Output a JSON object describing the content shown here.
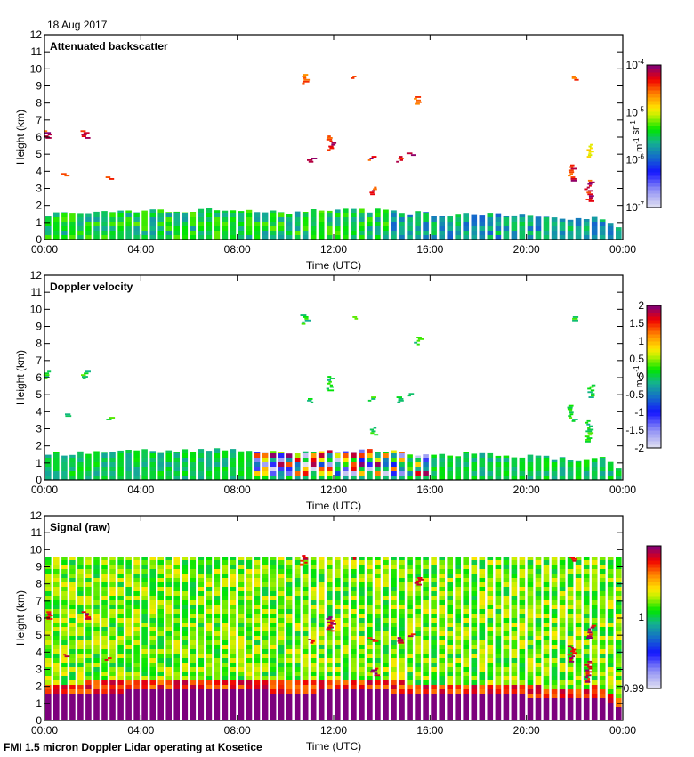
{
  "page": {
    "date_label": "18 Aug 2017",
    "footer": "FMI 1.5 micron Doppler Lidar operating at Kosetice"
  },
  "chart_data": [
    {
      "type": "heatmap",
      "title": "Attenuated backscatter",
      "xlabel": "Time (UTC)",
      "ylabel": "Height (km)",
      "xticks": [
        "00:00",
        "04:00",
        "08:00",
        "12:00",
        "16:00",
        "20:00",
        "00:00"
      ],
      "xlim_hours": [
        0,
        24
      ],
      "yticks": [
        0,
        1,
        2,
        3,
        4,
        5,
        6,
        7,
        8,
        9,
        10,
        11,
        12
      ],
      "ylim": [
        0,
        12
      ],
      "colorbar": {
        "scale": "log",
        "range": [
          1e-07,
          0.0001
        ],
        "tick_labels": [
          {
            "base": "10",
            "exp": "-4",
            "value": -4
          },
          {
            "base": "10",
            "exp": "-5",
            "value": -5
          },
          {
            "base": "10",
            "exp": "-6",
            "value": -6
          },
          {
            "base": "10",
            "exp": "-7",
            "value": -7
          }
        ],
        "label_parts": [
          {
            "text": "m",
            "sup": "-1"
          },
          {
            "text": " sr",
            "sup": "-1"
          }
        ]
      },
      "boundary_layer_km": {
        "hours": [
          0,
          2,
          4,
          6,
          8,
          10,
          12,
          14,
          16,
          18,
          20,
          22,
          23,
          23.8
        ],
        "top": [
          1.5,
          1.6,
          1.7,
          1.7,
          1.8,
          1.6,
          1.7,
          1.7,
          1.5,
          1.5,
          1.4,
          1.2,
          1.4,
          0.8
        ]
      },
      "cloud_features": [
        {
          "hour": 0.05,
          "base_km": 5.9,
          "top_km": 6.3,
          "intensity": "high"
        },
        {
          "hour": 1.6,
          "base_km": 5.9,
          "top_km": 6.3,
          "intensity": "high"
        },
        {
          "hour": 0.8,
          "base_km": 3.7,
          "top_km": 3.9,
          "intensity": "medium"
        },
        {
          "hour": 2.6,
          "base_km": 3.5,
          "top_km": 3.7,
          "intensity": "medium"
        },
        {
          "hour": 10.7,
          "base_km": 9.1,
          "top_km": 9.6,
          "intensity": "medium"
        },
        {
          "hour": 12.8,
          "base_km": 9.4,
          "top_km": 9.6,
          "intensity": "medium"
        },
        {
          "hour": 11.8,
          "base_km": 5.2,
          "top_km": 6.0,
          "intensity": "high"
        },
        {
          "hour": 11.0,
          "base_km": 4.5,
          "top_km": 4.7,
          "intensity": "high"
        },
        {
          "hour": 13.5,
          "base_km": 4.6,
          "top_km": 4.8,
          "intensity": "high"
        },
        {
          "hour": 14.7,
          "base_km": 4.5,
          "top_km": 4.8,
          "intensity": "high"
        },
        {
          "hour": 15.1,
          "base_km": 4.9,
          "top_km": 5.1,
          "intensity": "high"
        },
        {
          "hour": 15.4,
          "base_km": 7.9,
          "top_km": 8.3,
          "intensity": "medium"
        },
        {
          "hour": 13.6,
          "base_km": 2.6,
          "top_km": 3.1,
          "intensity": "high"
        },
        {
          "hour": 21.8,
          "base_km": 3.4,
          "top_km": 4.3,
          "intensity": "high"
        },
        {
          "hour": 22.5,
          "base_km": 2.2,
          "top_km": 3.5,
          "intensity": "high"
        },
        {
          "hour": 22.6,
          "base_km": 4.8,
          "top_km": 5.5,
          "intensity": "low"
        },
        {
          "hour": 21.9,
          "base_km": 9.3,
          "top_km": 9.6,
          "intensity": "medium"
        }
      ]
    },
    {
      "type": "heatmap",
      "title": "Doppler velocity",
      "xlabel": "Time (UTC)",
      "ylabel": "Height (km)",
      "xticks": [
        "00:00",
        "04:00",
        "08:00",
        "12:00",
        "16:00",
        "20:00",
        "00:00"
      ],
      "xlim_hours": [
        0,
        24
      ],
      "yticks": [
        0,
        1,
        2,
        3,
        4,
        5,
        6,
        7,
        8,
        9,
        10,
        11,
        12
      ],
      "ylim": [
        0,
        12
      ],
      "colorbar": {
        "scale": "linear",
        "range": [
          -2,
          2
        ],
        "tick_labels": [
          {
            "text": "2",
            "value": 2
          },
          {
            "text": "1.5",
            "value": 1.5
          },
          {
            "text": "1",
            "value": 1
          },
          {
            "text": "0.5",
            "value": 0.5
          },
          {
            "text": "0",
            "value": 0
          },
          {
            "text": "-0.5",
            "value": -0.5
          },
          {
            "text": "-1",
            "value": -1
          },
          {
            "text": "-1.5",
            "value": -1.5
          },
          {
            "text": "-2",
            "value": -2
          }
        ],
        "label_parts": [
          {
            "text": "m s",
            "sup": "-1"
          }
        ]
      },
      "turbulent_period_hours": [
        8.5,
        16.0
      ]
    },
    {
      "type": "heatmap",
      "title": "Signal (raw)",
      "xlabel": "Time (UTC)",
      "ylabel": "Height (km)",
      "xticks": [
        "00:00",
        "04:00",
        "08:00",
        "12:00",
        "16:00",
        "20:00",
        "00:00"
      ],
      "xlim_hours": [
        0,
        24
      ],
      "yticks": [
        0,
        1,
        2,
        3,
        4,
        5,
        6,
        7,
        8,
        9,
        10,
        11,
        12
      ],
      "ylim": [
        0,
        12
      ],
      "data_top_km": 9.6,
      "colorbar": {
        "scale": "linear",
        "range": [
          0.99,
          1.01
        ],
        "tick_labels": [
          {
            "text": "1",
            "value": 1.0
          },
          {
            "text": "0.99",
            "value": 0.99
          }
        ],
        "label_parts": []
      }
    }
  ]
}
